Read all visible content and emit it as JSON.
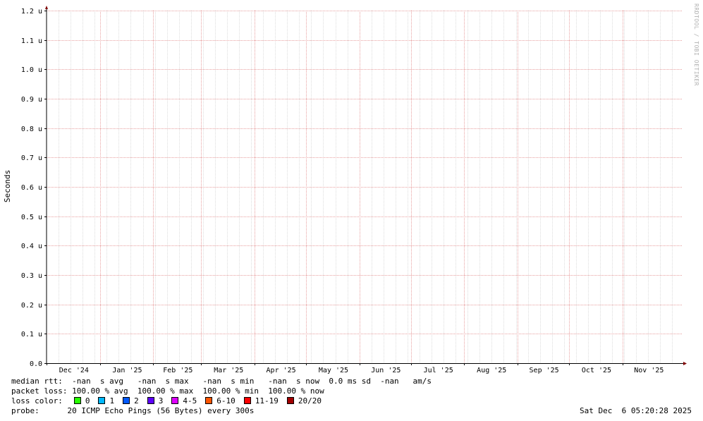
{
  "chart_data": {
    "type": "line",
    "title": "",
    "ylabel": "Seconds",
    "xlabel": "",
    "ylim": [
      0,
      1.2
    ],
    "y_unit_suffix": "u",
    "y_ticks": [
      "0.0",
      "0.1 u",
      "0.2 u",
      "0.3 u",
      "0.4 u",
      "0.5 u",
      "0.6 u",
      "0.7 u",
      "0.8 u",
      "0.9 u",
      "1.0 u",
      "1.1 u",
      "1.2 u"
    ],
    "y_tick_values": [
      0,
      0.1,
      0.2,
      0.3,
      0.4,
      0.5,
      0.6,
      0.7,
      0.8,
      0.9,
      1.0,
      1.1,
      1.2
    ],
    "x_ticks": [
      "Dec '24",
      "Jan '25",
      "Feb '25",
      "Mar '25",
      "Apr '25",
      "May '25",
      "Jun '25",
      "Jul '25",
      "Aug '25",
      "Sep '25",
      "Oct '25",
      "Nov '25"
    ],
    "xlim": [
      "2024-12-01",
      "2025-12-06"
    ],
    "x_tick_dates": [
      "2024-12-01",
      "2025-01-01",
      "2025-02-01",
      "2025-03-01",
      "2025-04-01",
      "2025-05-01",
      "2025-06-01",
      "2025-07-01",
      "2025-08-01",
      "2025-09-01",
      "2025-10-01",
      "2025-11-01"
    ],
    "grid": true,
    "series": []
  },
  "watermark": "RRDTOOL / TOBI OETIKER",
  "legend": {
    "median_rtt_label": "median rtt:",
    "median_rtt_values": "  -nan  s avg   -nan  s max   -nan  s min   -nan  s now  0.0 ms sd  -nan   am/s",
    "packet_loss_label": "packet loss:",
    "packet_loss_values": " 100.00 % avg  100.00 % max  100.00 % min  100.00 % now",
    "loss_color_label": "loss color:",
    "loss_colors": [
      {
        "label": "0",
        "color": "#26ff00"
      },
      {
        "label": "1",
        "color": "#00b8ff"
      },
      {
        "label": "2",
        "color": "#0059ff"
      },
      {
        "label": "3",
        "color": "#5e00ff"
      },
      {
        "label": "4-5",
        "color": "#dd00ff"
      },
      {
        "label": "6-10",
        "color": "#ff5500"
      },
      {
        "label": "11-19",
        "color": "#ff0000"
      },
      {
        "label": "20/20",
        "color": "#a10000"
      }
    ],
    "probe_label": "probe:",
    "probe_value": "      20 ICMP Echo Pings (56 Bytes) every 300s",
    "date": "Sat Dec  6 05:20:28 2025"
  },
  "colors": {
    "grid_major": "#e8a0a0",
    "grid_minor": "#dddddd",
    "axis": "#800000"
  }
}
